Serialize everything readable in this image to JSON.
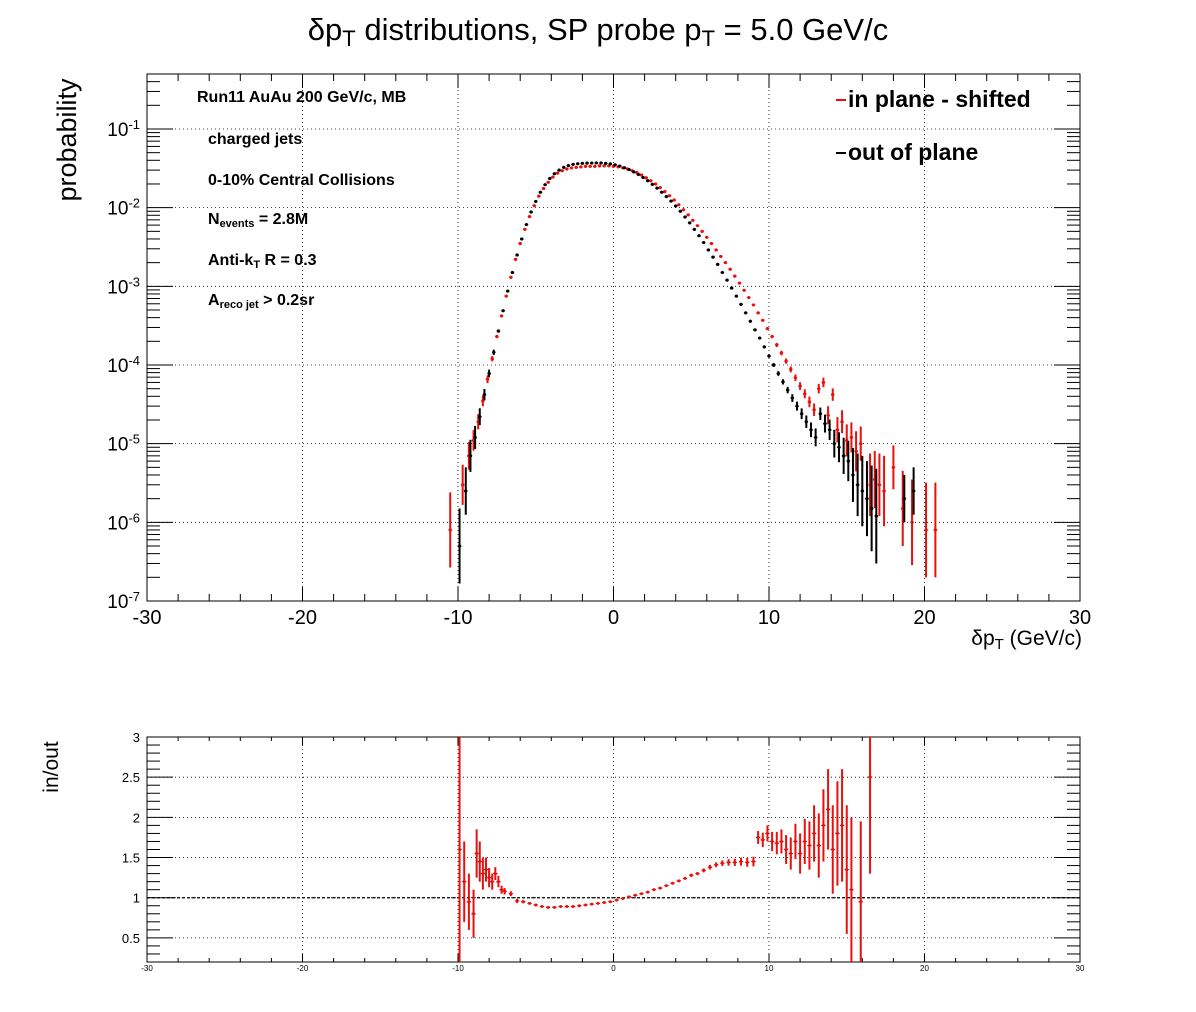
{
  "chart_data": [
    {
      "type": "scatter",
      "title_main": "δp",
      "title_sub": "T",
      "title_rest": " distributions, SP probe p",
      "title_sub2": "T",
      "title_end": " = 5.0 GeV/c",
      "ylabel": "probability",
      "xlabel_main": "δp",
      "xlabel_sub": "T",
      "xlabel_rest": " (GeV/c)",
      "xlim": [
        -30,
        30
      ],
      "ylim": [
        1e-07,
        0.5
      ],
      "log_y": true,
      "grid": true,
      "x_ticks": [
        "-30",
        "-20",
        "-10",
        "0",
        "10",
        "20",
        "30"
      ],
      "y_ticks": [
        {
          "base": "10",
          "exp": "-7",
          "value": 1e-07
        },
        {
          "base": "10",
          "exp": "-6",
          "value": 1e-06
        },
        {
          "base": "10",
          "exp": "-5",
          "value": 1e-05
        },
        {
          "base": "10",
          "exp": "-4",
          "value": 0.0001
        },
        {
          "base": "10",
          "exp": "-3",
          "value": 0.001
        },
        {
          "base": "10",
          "exp": "-2",
          "value": 0.01
        },
        {
          "base": "10",
          "exp": "-1",
          "value": 0.1
        }
      ],
      "annotations": {
        "run": "Run11 AuAu 200 GeV/c, MB",
        "jets": "charged jets",
        "centrality": "0-10% Central Collisions",
        "nevents_main": "N",
        "nevents_sub": "events",
        "nevents_rest": " = 2.8M",
        "algo_main": "Anti-k",
        "algo_sub": "T",
        "algo_rest": "   R = 0.3",
        "area_main": "A",
        "area_sub": "reco jet",
        "area_rest": " > 0.2sr"
      },
      "legend_position": "top-right",
      "series": [
        {
          "name": "in plane - shifted",
          "color": "#e8100c",
          "x": [
            -10.5,
            -9.7,
            -9.3,
            -9.0,
            -8.7,
            -8.4,
            -8.1,
            -7.8,
            -7.5,
            -7.2,
            -6.9,
            -6.6,
            -6.3,
            -6.0,
            -5.7,
            -5.4,
            -5.1,
            -4.8,
            -4.5,
            -4.2,
            -3.9,
            -3.6,
            -3.3,
            -3.0,
            -2.7,
            -2.4,
            -2.1,
            -1.8,
            -1.5,
            -1.2,
            -0.9,
            -0.6,
            -0.3,
            0.0,
            0.3,
            0.6,
            0.9,
            1.2,
            1.5,
            1.8,
            2.1,
            2.4,
            2.7,
            3.0,
            3.3,
            3.6,
            3.9,
            4.2,
            4.5,
            4.8,
            5.1,
            5.4,
            5.7,
            6.0,
            6.3,
            6.6,
            6.9,
            7.2,
            7.5,
            7.8,
            8.1,
            8.4,
            8.7,
            9.0,
            9.3,
            9.6,
            9.9,
            10.2,
            10.5,
            10.8,
            11.1,
            11.4,
            11.7,
            12.0,
            12.3,
            12.6,
            12.9,
            13.2,
            13.5,
            13.8,
            14.1,
            14.4,
            14.7,
            15.0,
            15.3,
            15.6,
            15.9,
            16.5,
            16.8,
            17.1,
            17.4,
            18.0,
            18.6,
            19.2,
            20.1,
            20.7
          ],
          "y": [
            8e-07,
            3e-06,
            7e-06,
            1.1e-05,
            1.9e-05,
            3.5e-05,
            6.6e-05,
            0.00012,
            0.00023,
            0.00042,
            0.00075,
            0.0013,
            0.0022,
            0.0035,
            0.0053,
            0.0077,
            0.0106,
            0.014,
            0.0175,
            0.021,
            0.0245,
            0.0275,
            0.0295,
            0.031,
            0.032,
            0.0325,
            0.033,
            0.0335,
            0.0335,
            0.0335,
            0.034,
            0.034,
            0.034,
            0.0335,
            0.033,
            0.032,
            0.031,
            0.0295,
            0.028,
            0.026,
            0.024,
            0.022,
            0.02,
            0.018,
            0.016,
            0.0142,
            0.0125,
            0.0109,
            0.0094,
            0.0081,
            0.0069,
            0.0059,
            0.005,
            0.0042,
            0.0035,
            0.0029,
            0.0024,
            0.002,
            0.00165,
            0.00135,
            0.0011,
            0.00089,
            0.00072,
            0.00058,
            0.00046,
            0.00037,
            0.00029,
            0.00023,
            0.00018,
            0.000142,
            0.000112,
            8.8e-05,
            6.9e-05,
            5.4e-05,
            4.3e-05,
            3.4e-05,
            2.7e-05,
            5e-05,
            6e-05,
            2.3e-05,
            4.2e-05,
            1.5e-05,
            1.9e-05,
            1.1e-05,
            1.2e-05,
            8e-06,
            1e-05,
            3e-06,
            3.5e-06,
            3e-06,
            2.5e-06,
            5e-06,
            1.5e-06,
            1e-06,
            8e-07,
            8e-07
          ],
          "err_factor": [
            3.0,
            1.8,
            1.5,
            1.35,
            1.25,
            1.17,
            1.12,
            1.08,
            1.05,
            1.03,
            1.02,
            1.01,
            1.01,
            1.005,
            1.005,
            1.005,
            1.005,
            1.005,
            1.005,
            1.005,
            1.005,
            1.005,
            1.005,
            1.005,
            1.005,
            1.005,
            1.005,
            1.005,
            1.005,
            1.005,
            1.005,
            1.005,
            1.005,
            1.005,
            1.005,
            1.005,
            1.005,
            1.005,
            1.005,
            1.005,
            1.005,
            1.005,
            1.005,
            1.005,
            1.005,
            1.005,
            1.005,
            1.005,
            1.005,
            1.005,
            1.005,
            1.005,
            1.005,
            1.005,
            1.005,
            1.005,
            1.005,
            1.005,
            1.01,
            1.01,
            1.01,
            1.015,
            1.02,
            1.02,
            1.03,
            1.03,
            1.04,
            1.05,
            1.06,
            1.07,
            1.08,
            1.09,
            1.1,
            1.12,
            1.14,
            1.17,
            1.2,
            1.15,
            1.15,
            1.3,
            1.2,
            1.45,
            1.4,
            1.6,
            1.55,
            1.8,
            1.65,
            2.5,
            2.3,
            2.5,
            2.8,
            1.9,
            3.0,
            3.5,
            4.0,
            4.0
          ]
        },
        {
          "name": "out of plane",
          "color": "#000000",
          "x": [
            -9.9,
            -9.5,
            -9.2,
            -8.9,
            -8.6,
            -8.3,
            -8.0,
            -7.7,
            -7.4,
            -7.1,
            -6.8,
            -6.5,
            -6.2,
            -5.9,
            -5.6,
            -5.3,
            -5.0,
            -4.7,
            -4.4,
            -4.1,
            -3.8,
            -3.5,
            -3.2,
            -2.9,
            -2.6,
            -2.3,
            -2.0,
            -1.7,
            -1.4,
            -1.1,
            -0.8,
            -0.5,
            -0.2,
            0.1,
            0.4,
            0.7,
            1.0,
            1.3,
            1.6,
            1.9,
            2.2,
            2.5,
            2.8,
            3.1,
            3.4,
            3.7,
            4.0,
            4.3,
            4.6,
            4.9,
            5.2,
            5.5,
            5.8,
            6.1,
            6.4,
            6.7,
            7.0,
            7.3,
            7.6,
            7.9,
            8.2,
            8.5,
            8.8,
            9.1,
            9.4,
            9.7,
            10.0,
            10.3,
            10.6,
            10.9,
            11.2,
            11.5,
            11.8,
            12.1,
            12.4,
            12.7,
            13.0,
            13.3,
            13.6,
            13.9,
            14.2,
            14.5,
            14.8,
            15.1,
            15.4,
            15.7,
            16.0,
            16.3,
            16.6,
            16.9,
            18.7,
            19.3
          ],
          "y": [
            5e-07,
            2.5e-06,
            7e-06,
            1.2e-05,
            2.2e-05,
            4.2e-05,
            7.8e-05,
            0.000145,
            0.00027,
            0.00049,
            0.00087,
            0.0015,
            0.0025,
            0.004,
            0.0061,
            0.0088,
            0.012,
            0.0157,
            0.0196,
            0.0235,
            0.027,
            0.03,
            0.0325,
            0.0342,
            0.0355,
            0.0362,
            0.0366,
            0.0368,
            0.0369,
            0.037,
            0.037,
            0.0366,
            0.036,
            0.035,
            0.0338,
            0.0322,
            0.0305,
            0.0285,
            0.0264,
            0.0242,
            0.022,
            0.0198,
            0.0177,
            0.0157,
            0.0138,
            0.0121,
            0.0105,
            0.009,
            0.0076,
            0.0064,
            0.0053,
            0.0044,
            0.0036,
            0.0029,
            0.00235,
            0.0019,
            0.0015,
            0.0012,
            0.00095,
            0.00075,
            0.00059,
            0.00046,
            0.00036,
            0.00028,
            0.00022,
            0.00017,
            0.00013,
            0.0001,
            7.8e-05,
            6.1e-05,
            4.8e-05,
            3.8e-05,
            3e-05,
            2.4e-05,
            1.9e-05,
            1.5e-05,
            1.2e-05,
            2.4e-05,
            1.8e-05,
            1.5e-05,
            1e-05,
            9e-06,
            7e-06,
            6e-06,
            4e-06,
            3e-06,
            2.5e-06,
            2e-06,
            1.5e-06,
            1.2e-06,
            2e-06,
            2.5e-06
          ],
          "err_factor": [
            3.0,
            2.0,
            1.6,
            1.4,
            1.28,
            1.18,
            1.12,
            1.08,
            1.05,
            1.03,
            1.02,
            1.01,
            1.01,
            1.005,
            1.005,
            1.005,
            1.005,
            1.005,
            1.005,
            1.005,
            1.005,
            1.005,
            1.005,
            1.005,
            1.005,
            1.005,
            1.005,
            1.005,
            1.005,
            1.005,
            1.005,
            1.005,
            1.005,
            1.005,
            1.005,
            1.005,
            1.005,
            1.005,
            1.005,
            1.005,
            1.005,
            1.005,
            1.005,
            1.005,
            1.005,
            1.005,
            1.005,
            1.005,
            1.005,
            1.005,
            1.005,
            1.005,
            1.005,
            1.005,
            1.005,
            1.005,
            1.005,
            1.01,
            1.01,
            1.01,
            1.015,
            1.02,
            1.02,
            1.03,
            1.03,
            1.04,
            1.05,
            1.06,
            1.07,
            1.08,
            1.1,
            1.12,
            1.14,
            1.17,
            1.2,
            1.24,
            1.3,
            1.2,
            1.3,
            1.35,
            1.5,
            1.55,
            1.7,
            1.8,
            2.2,
            2.5,
            2.8,
            3.0,
            3.5,
            4.0,
            2.0,
            2.0
          ]
        }
      ]
    },
    {
      "type": "scatter",
      "ylabel": "in/out",
      "xlim": [
        -30,
        30
      ],
      "ylim": [
        0.2,
        3.0
      ],
      "grid": true,
      "reference_line": 1.0,
      "x_ticks": [
        "-30",
        "-20",
        "-10",
        "0",
        "10",
        "20",
        "30"
      ],
      "y_ticks": [
        "0.5",
        "1",
        "1.5",
        "2",
        "2.5",
        "3"
      ],
      "series": [
        {
          "name": "",
          "color": "#e8100c",
          "x": [
            -9.9,
            -9.6,
            -9.3,
            -9.0,
            -8.8,
            -8.6,
            -8.4,
            -8.2,
            -8.0,
            -7.8,
            -7.6,
            -7.4,
            -7.2,
            -7.0,
            -6.6,
            -6.2,
            -5.8,
            -5.4,
            -5.0,
            -4.6,
            -4.2,
            -3.8,
            -3.4,
            -3.0,
            -2.6,
            -2.2,
            -1.8,
            -1.4,
            -1.0,
            -0.6,
            -0.2,
            0.2,
            0.6,
            1.0,
            1.4,
            1.8,
            2.2,
            2.6,
            3.0,
            3.4,
            3.8,
            4.2,
            4.6,
            5.0,
            5.4,
            5.8,
            6.2,
            6.6,
            7.0,
            7.4,
            7.8,
            8.2,
            8.6,
            9.0,
            9.3,
            9.6,
            9.9,
            10.2,
            10.5,
            10.8,
            11.1,
            11.4,
            11.7,
            12.0,
            12.3,
            12.6,
            12.9,
            13.2,
            13.5,
            13.8,
            14.1,
            14.4,
            14.7,
            15.0,
            15.3,
            15.9,
            16.5
          ],
          "y": [
            1.6,
            1.2,
            0.95,
            0.8,
            1.55,
            1.45,
            1.3,
            1.35,
            1.25,
            1.2,
            1.3,
            1.2,
            1.1,
            1.08,
            1.05,
            0.96,
            0.95,
            0.93,
            0.91,
            0.89,
            0.88,
            0.88,
            0.89,
            0.89,
            0.89,
            0.9,
            0.91,
            0.92,
            0.93,
            0.94,
            0.95,
            0.97,
            0.99,
            1.01,
            1.03,
            1.05,
            1.07,
            1.1,
            1.12,
            1.15,
            1.18,
            1.21,
            1.24,
            1.28,
            1.3,
            1.34,
            1.38,
            1.41,
            1.43,
            1.44,
            1.44,
            1.45,
            1.44,
            1.45,
            1.75,
            1.72,
            1.8,
            1.7,
            1.68,
            1.7,
            1.6,
            1.55,
            1.7,
            1.55,
            1.7,
            1.65,
            1.8,
            1.65,
            1.9,
            2.1,
            1.6,
            1.8,
            1.9,
            1.35,
            1.1,
            0.95,
            2.5
          ],
          "err": [
            1.5,
            0.5,
            0.35,
            0.3,
            0.3,
            0.25,
            0.2,
            0.15,
            0.12,
            0.1,
            0.08,
            0.07,
            0.05,
            0.04,
            0.03,
            0.025,
            0.02,
            0.015,
            0.015,
            0.012,
            0.01,
            0.01,
            0.01,
            0.01,
            0.01,
            0.01,
            0.01,
            0.01,
            0.01,
            0.01,
            0.01,
            0.01,
            0.01,
            0.01,
            0.01,
            0.01,
            0.01,
            0.01,
            0.01,
            0.012,
            0.012,
            0.015,
            0.015,
            0.02,
            0.02,
            0.025,
            0.03,
            0.03,
            0.035,
            0.04,
            0.045,
            0.05,
            0.055,
            0.06,
            0.08,
            0.09,
            0.1,
            0.12,
            0.14,
            0.15,
            0.18,
            0.2,
            0.22,
            0.25,
            0.28,
            0.3,
            0.35,
            0.4,
            0.45,
            0.5,
            0.55,
            0.65,
            0.7,
            0.8,
            0.9,
            1.0,
            1.2
          ]
        }
      ]
    }
  ]
}
